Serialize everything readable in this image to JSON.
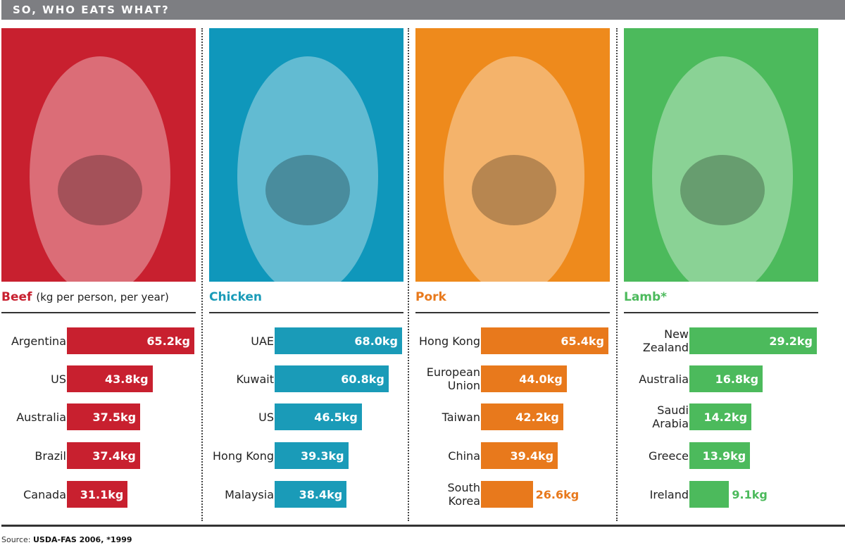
{
  "header": {
    "title": "SO, WHO EATS WHAT?"
  },
  "chart_data": [
    {
      "type": "bar",
      "orientation": "horizontal",
      "title": "Beef",
      "subtitle": "(kg per person, per year)",
      "color": "#c8202f",
      "photo_bg": "#c8202f",
      "photo_icon": "cow-photo",
      "categories": [
        "Argentina",
        "US",
        "Australia",
        "Brazil",
        "Canada"
      ],
      "values": [
        65.2,
        43.8,
        37.5,
        37.4,
        31.1
      ],
      "labels": [
        "65.2kg",
        "43.8kg",
        "37.5kg",
        "37.4kg",
        "31.1kg"
      ]
    },
    {
      "type": "bar",
      "orientation": "horizontal",
      "title": "Chicken",
      "subtitle": "",
      "color": "#1a9bb8",
      "photo_bg": "#0f97bb",
      "photo_icon": "chicken-photo",
      "categories": [
        "UAE",
        "Kuwait",
        "US",
        "Hong Kong",
        "Malaysia"
      ],
      "values": [
        68.0,
        60.8,
        46.5,
        39.3,
        38.4
      ],
      "labels": [
        "68.0kg",
        "60.8kg",
        "46.5kg",
        "39.3kg",
        "38.4kg"
      ]
    },
    {
      "type": "bar",
      "orientation": "horizontal",
      "title": "Pork",
      "subtitle": "",
      "color": "#e8791c",
      "photo_bg": "#ee8a1c",
      "photo_icon": "pig-photo",
      "categories": [
        "Hong Kong",
        "European Union",
        "Taiwan",
        "China",
        "South Korea"
      ],
      "values": [
        65.4,
        44.0,
        42.2,
        39.4,
        26.6
      ],
      "labels": [
        "65.4kg",
        "44.0kg",
        "42.2kg",
        "39.4kg",
        "26.6kg"
      ]
    },
    {
      "type": "bar",
      "orientation": "horizontal",
      "title": "Lamb*",
      "subtitle": "",
      "color": "#4cba5c",
      "photo_bg": "#4cba5c",
      "photo_icon": "lamb-photo",
      "categories": [
        "New Zealand",
        "Australia",
        "Saudi Arabia",
        "Greece",
        "Ireland"
      ],
      "values": [
        29.2,
        16.8,
        14.2,
        13.9,
        9.1
      ],
      "labels": [
        "29.2kg",
        "16.8kg",
        "14.2kg",
        "13.9kg",
        "9.1kg"
      ]
    }
  ],
  "footer": {
    "source_label": "Source:",
    "source_text": "USDA-FAS 2006, *1999"
  }
}
